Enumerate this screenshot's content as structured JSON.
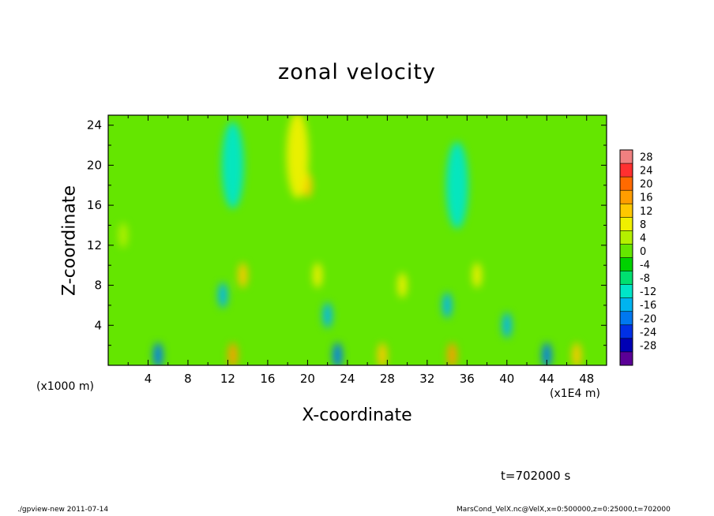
{
  "chart_data": {
    "type": "heatmap",
    "title": "zonal velocity",
    "xlabel": "X-coordinate",
    "ylabel": "Z-coordinate",
    "x_unit_label": "(x1E4 m)",
    "y_unit_label": "(x1000 m)",
    "xlim": [
      0,
      50
    ],
    "ylim": [
      0,
      25
    ],
    "x_ticks": [
      4,
      8,
      12,
      16,
      20,
      24,
      28,
      32,
      36,
      40,
      44,
      48
    ],
    "y_ticks": [
      4,
      8,
      12,
      16,
      20,
      24
    ],
    "colorbar": {
      "levels": [
        28,
        24,
        20,
        16,
        12,
        8,
        4,
        0,
        -4,
        -8,
        -12,
        -16,
        -20,
        -24,
        -28
      ],
      "range": [
        -30,
        30
      ],
      "colors": [
        "#f08080",
        "#ff3030",
        "#ff6a00",
        "#ff9d00",
        "#ffc800",
        "#f0f000",
        "#b4f000",
        "#64e600",
        "#00d200",
        "#00e070",
        "#00e6c8",
        "#00b4f0",
        "#0078f0",
        "#0030e6",
        "#0000b4",
        "#5a0096"
      ]
    },
    "features": [
      {
        "x": 20,
        "z": 18,
        "value": 12
      },
      {
        "x": 19,
        "z": 21,
        "value": 10
      },
      {
        "x": 12.5,
        "z": 20,
        "value": -8
      },
      {
        "x": 35,
        "z": 18,
        "value": -8
      },
      {
        "x": 12.5,
        "z": 1,
        "value": 18
      },
      {
        "x": 34.5,
        "z": 1,
        "value": 18
      },
      {
        "x": 27.5,
        "z": 1,
        "value": 14
      },
      {
        "x": 47,
        "z": 1,
        "value": 14
      },
      {
        "x": 13.5,
        "z": 9,
        "value": 12
      },
      {
        "x": 21,
        "z": 9,
        "value": 10
      },
      {
        "x": 29.5,
        "z": 8,
        "value": 10
      },
      {
        "x": 37,
        "z": 9,
        "value": 10
      },
      {
        "x": 11.5,
        "z": 7,
        "value": -12
      },
      {
        "x": 22,
        "z": 5,
        "value": -12
      },
      {
        "x": 34,
        "z": 6,
        "value": -12
      },
      {
        "x": 40,
        "z": 4,
        "value": -12
      },
      {
        "x": 5,
        "z": 1,
        "value": -16
      },
      {
        "x": 23,
        "z": 1,
        "value": -18
      },
      {
        "x": 44,
        "z": 1,
        "value": -16
      },
      {
        "x": 1.5,
        "z": 13,
        "value": 6
      }
    ]
  },
  "time_label": "t=702000 s",
  "footer": {
    "left": "./gpview-new   2011-07-14",
    "right": "MarsCond_VelX.nc@VelX,x=0:500000,z=0:25000,t=702000"
  }
}
